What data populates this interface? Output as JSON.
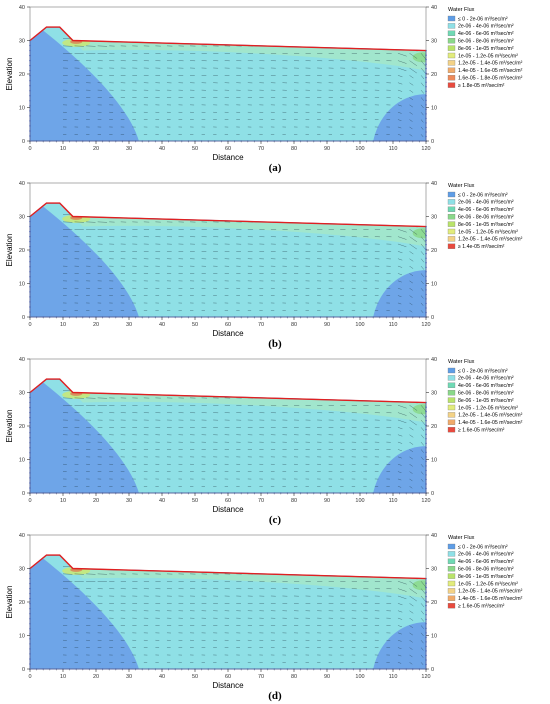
{
  "figure": {
    "panels": [
      {
        "caption": "(a)",
        "chart_data": {
          "type": "heatmap",
          "title": "",
          "xlabel": "Distance",
          "ylabel": "Elevation",
          "xlim": [
            0,
            120
          ],
          "ylim": [
            0,
            40
          ],
          "x_ticks": [
            "0",
            "10",
            "20",
            "30",
            "40",
            "50",
            "60",
            "70",
            "80",
            "90",
            "100",
            "110",
            "120"
          ],
          "y_ticks": [
            "0",
            "10",
            "20",
            "30",
            "40"
          ],
          "legend_title": "Water Flux",
          "legend_placement": "top-right",
          "legend": [
            {
              "label": "≤ 0 - 2e-06 m³/sec/m²",
              "color": "#5e9de6"
            },
            {
              "label": "2e-06 - 4e-06 m³/sec/m²",
              "color": "#8fe0e6"
            },
            {
              "label": "4e-06 - 6e-06 m³/sec/m²",
              "color": "#6fd9b4"
            },
            {
              "label": "6e-06 - 8e-06 m³/sec/m²",
              "color": "#8ad88a"
            },
            {
              "label": "8e-06 - 1e-05 m³/sec/m²",
              "color": "#b9e36a"
            },
            {
              "label": "1e-05 - 1.2e-05 m³/sec/m²",
              "color": "#e2ec7c"
            },
            {
              "label": "1.2e-05 - 1.4e-05 m³/sec/m²",
              "color": "#f3d287"
            },
            {
              "label": "1.4e-05 - 1.6e-05 m³/sec/m²",
              "color": "#f0aa6a"
            },
            {
              "label": "1.6e-05 - 1.8e-05 m³/sec/m²",
              "color": "#ee8a5a"
            },
            {
              "label": "≥ 1.8e-05 m³/sec/m²",
              "color": "#e84a3e"
            }
          ],
          "surface_line": [
            [
              0,
              30
            ],
            [
              5,
              34
            ],
            [
              9,
              34
            ],
            [
              13,
              30
            ],
            [
              120,
              27
            ]
          ],
          "grid": false
        }
      },
      {
        "caption": "(b)",
        "chart_data": {
          "type": "heatmap",
          "title": "",
          "xlabel": "Distance",
          "ylabel": "Elevation",
          "xlim": [
            0,
            120
          ],
          "ylim": [
            0,
            40
          ],
          "x_ticks": [
            "0",
            "10",
            "20",
            "30",
            "40",
            "50",
            "60",
            "70",
            "80",
            "90",
            "100",
            "110",
            "120"
          ],
          "y_ticks": [
            "0",
            "10",
            "20",
            "30",
            "40"
          ],
          "legend_title": "Water Flux",
          "legend_placement": "top-right",
          "legend": [
            {
              "label": "≤ 0 - 2e-06 m³/sec/m²",
              "color": "#5e9de6"
            },
            {
              "label": "2e-06 - 4e-06 m³/sec/m²",
              "color": "#8fe0e6"
            },
            {
              "label": "4e-06 - 6e-06 m³/sec/m²",
              "color": "#6fd9b4"
            },
            {
              "label": "6e-06 - 8e-06 m³/sec/m²",
              "color": "#8ad88a"
            },
            {
              "label": "8e-06 - 1e-05 m³/sec/m²",
              "color": "#b9e36a"
            },
            {
              "label": "1e-05 - 1.2e-05 m³/sec/m²",
              "color": "#e2ec7c"
            },
            {
              "label": "1.2e-05 - 1.4e-05 m³/sec/m²",
              "color": "#f3d287"
            },
            {
              "label": "≥ 1.4e-05 m³/sec/m²",
              "color": "#e84a3e"
            }
          ],
          "surface_line": [
            [
              0,
              30
            ],
            [
              5,
              34
            ],
            [
              9,
              34
            ],
            [
              13,
              30
            ],
            [
              120,
              27
            ]
          ],
          "grid": false
        }
      },
      {
        "caption": "(c)",
        "chart_data": {
          "type": "heatmap",
          "title": "",
          "xlabel": "Distance",
          "ylabel": "Elevation",
          "xlim": [
            0,
            120
          ],
          "ylim": [
            0,
            40
          ],
          "x_ticks": [
            "0",
            "10",
            "20",
            "30",
            "40",
            "50",
            "60",
            "70",
            "80",
            "90",
            "100",
            "110",
            "120"
          ],
          "y_ticks": [
            "0",
            "10",
            "20",
            "30",
            "40"
          ],
          "legend_title": "Water Flux",
          "legend_placement": "top-right",
          "legend": [
            {
              "label": "≤ 0 - 2e-06 m³/sec/m²",
              "color": "#5e9de6"
            },
            {
              "label": "2e-06 - 4e-06 m³/sec/m²",
              "color": "#8fe0e6"
            },
            {
              "label": "4e-06 - 6e-06 m³/sec/m²",
              "color": "#6fd9b4"
            },
            {
              "label": "6e-06 - 8e-06 m³/sec/m²",
              "color": "#8ad88a"
            },
            {
              "label": "8e-06 - 1e-05 m³/sec/m²",
              "color": "#b9e36a"
            },
            {
              "label": "1e-05 - 1.2e-05 m³/sec/m²",
              "color": "#e2ec7c"
            },
            {
              "label": "1.2e-05 - 1.4e-05 m³/sec/m²",
              "color": "#f3d287"
            },
            {
              "label": "1.4e-05 - 1.6e-05 m³/sec/m²",
              "color": "#f0aa6a"
            },
            {
              "label": "≥ 1.6e-05 m³/sec/m²",
              "color": "#e84a3e"
            }
          ],
          "surface_line": [
            [
              0,
              30
            ],
            [
              5,
              34
            ],
            [
              9,
              34
            ],
            [
              13,
              30
            ],
            [
              120,
              27
            ]
          ],
          "grid": false
        }
      },
      {
        "caption": "(d)",
        "chart_data": {
          "type": "heatmap",
          "title": "",
          "xlabel": "Distance",
          "ylabel": "Elevation",
          "xlim": [
            0,
            120
          ],
          "ylim": [
            0,
            40
          ],
          "x_ticks": [
            "0",
            "10",
            "20",
            "30",
            "40",
            "50",
            "60",
            "70",
            "80",
            "90",
            "100",
            "110",
            "120"
          ],
          "y_ticks": [
            "0",
            "10",
            "20",
            "30",
            "40"
          ],
          "legend_title": "Water Flux",
          "legend_placement": "top-right",
          "legend": [
            {
              "label": "≤ 0 - 2e-06 m³/sec/m²",
              "color": "#5e9de6"
            },
            {
              "label": "2e-06 - 4e-06 m³/sec/m²",
              "color": "#8fe0e6"
            },
            {
              "label": "4e-06 - 6e-06 m³/sec/m²",
              "color": "#6fd9b4"
            },
            {
              "label": "6e-06 - 8e-06 m³/sec/m²",
              "color": "#8ad88a"
            },
            {
              "label": "8e-06 - 1e-05 m³/sec/m²",
              "color": "#b9e36a"
            },
            {
              "label": "1e-05 - 1.2e-05 m³/sec/m²",
              "color": "#e2ec7c"
            },
            {
              "label": "1.2e-05 - 1.4e-05 m³/sec/m²",
              "color": "#f3d287"
            },
            {
              "label": "1.4e-05 - 1.6e-05 m³/sec/m²",
              "color": "#f0aa6a"
            },
            {
              "label": "≥ 1.6e-05 m³/sec/m²",
              "color": "#e84a3e"
            }
          ],
          "surface_line": [
            [
              0,
              30
            ],
            [
              5,
              34
            ],
            [
              9,
              34
            ],
            [
              13,
              30
            ],
            [
              120,
              27
            ]
          ],
          "grid": false
        }
      }
    ]
  }
}
